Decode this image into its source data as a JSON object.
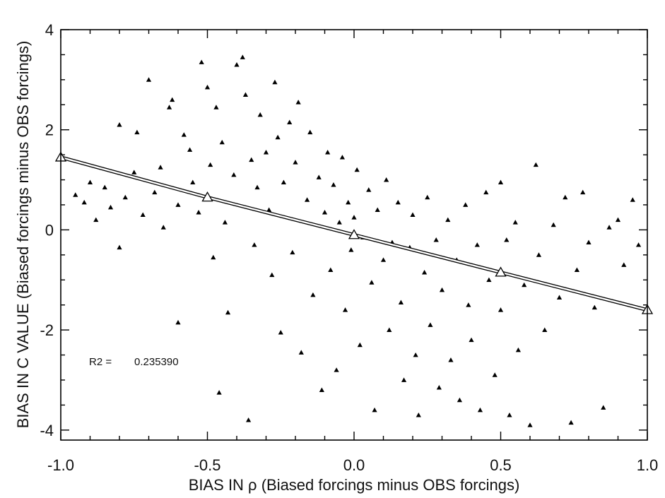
{
  "chart_data": {
    "type": "scatter",
    "title": "",
    "xlabel": "BIAS IN ρ (Biased forcings minus OBS forcings)",
    "ylabel": "BIAS IN C VALUE (Biased forcings minus OBS forcings)",
    "xlim": [
      -1.0,
      1.0
    ],
    "ylim": [
      -4.2,
      4.0
    ],
    "x_ticks": [
      -1.0,
      -0.5,
      0.0,
      0.5,
      1.0
    ],
    "x_tick_labels": [
      "-1.0",
      "-0.5",
      "0.0",
      "0.5",
      "1.0"
    ],
    "y_ticks": [
      -4,
      -2,
      0,
      2,
      4
    ],
    "y_tick_labels": [
      "-4",
      "-2",
      "0",
      "2",
      "4"
    ],
    "grid": false,
    "marker": "filled-triangle",
    "point_color": "#000000",
    "series": [
      {
        "points": [
          [
            -0.95,
            0.7
          ],
          [
            -0.92,
            0.55
          ],
          [
            -0.9,
            0.95
          ],
          [
            -0.88,
            0.2
          ],
          [
            -0.85,
            0.85
          ],
          [
            -0.83,
            0.45
          ],
          [
            -0.8,
            2.1
          ],
          [
            -0.8,
            -0.35
          ],
          [
            -0.78,
            0.65
          ],
          [
            -0.75,
            1.15
          ],
          [
            -0.74,
            1.95
          ],
          [
            -0.72,
            0.3
          ],
          [
            -0.7,
            3.0
          ],
          [
            -0.68,
            0.75
          ],
          [
            -0.66,
            1.25
          ],
          [
            -0.65,
            0.05
          ],
          [
            -0.63,
            2.45
          ],
          [
            -0.62,
            2.6
          ],
          [
            -0.6,
            0.5
          ],
          [
            -0.6,
            -1.85
          ],
          [
            -0.58,
            1.9
          ],
          [
            -0.56,
            1.6
          ],
          [
            -0.55,
            0.95
          ],
          [
            -0.53,
            0.35
          ],
          [
            -0.52,
            3.35
          ],
          [
            -0.5,
            2.85
          ],
          [
            -0.49,
            1.3
          ],
          [
            -0.48,
            -0.55
          ],
          [
            -0.47,
            2.45
          ],
          [
            -0.46,
            -3.25
          ],
          [
            -0.45,
            1.75
          ],
          [
            -0.44,
            0.15
          ],
          [
            -0.43,
            -1.65
          ],
          [
            -0.41,
            1.1
          ],
          [
            -0.4,
            3.3
          ],
          [
            -0.38,
            3.45
          ],
          [
            -0.37,
            2.7
          ],
          [
            -0.36,
            -3.8
          ],
          [
            -0.35,
            1.4
          ],
          [
            -0.34,
            -0.3
          ],
          [
            -0.33,
            0.85
          ],
          [
            -0.32,
            2.3
          ],
          [
            -0.3,
            1.55
          ],
          [
            -0.29,
            0.4
          ],
          [
            -0.28,
            -0.9
          ],
          [
            -0.27,
            2.95
          ],
          [
            -0.26,
            1.85
          ],
          [
            -0.25,
            -2.05
          ],
          [
            -0.24,
            0.95
          ],
          [
            -0.22,
            2.15
          ],
          [
            -0.21,
            -0.45
          ],
          [
            -0.2,
            1.35
          ],
          [
            -0.19,
            2.55
          ],
          [
            -0.18,
            -2.45
          ],
          [
            -0.16,
            0.6
          ],
          [
            -0.15,
            1.95
          ],
          [
            -0.14,
            -1.3
          ],
          [
            -0.12,
            1.05
          ],
          [
            -0.11,
            -3.2
          ],
          [
            -0.1,
            0.35
          ],
          [
            -0.09,
            1.55
          ],
          [
            -0.08,
            -0.8
          ],
          [
            -0.07,
            0.9
          ],
          [
            -0.06,
            -2.8
          ],
          [
            -0.05,
            0.15
          ],
          [
            -0.04,
            1.45
          ],
          [
            -0.03,
            -1.6
          ],
          [
            -0.02,
            0.55
          ],
          [
            -0.01,
            -0.4
          ],
          [
            0.0,
            0.25
          ],
          [
            0.01,
            1.2
          ],
          [
            0.02,
            -2.3
          ],
          [
            0.03,
            -0.15
          ],
          [
            0.05,
            0.8
          ],
          [
            0.06,
            -1.05
          ],
          [
            0.07,
            -3.6
          ],
          [
            0.08,
            0.4
          ],
          [
            0.1,
            -0.6
          ],
          [
            0.11,
            1.0
          ],
          [
            0.12,
            -2.0
          ],
          [
            0.13,
            -0.25
          ],
          [
            0.15,
            0.55
          ],
          [
            0.16,
            -1.45
          ],
          [
            0.17,
            -3.0
          ],
          [
            0.19,
            -0.35
          ],
          [
            0.2,
            0.3
          ],
          [
            0.21,
            -2.5
          ],
          [
            0.22,
            -3.7
          ],
          [
            0.24,
            -0.85
          ],
          [
            0.25,
            0.65
          ],
          [
            0.26,
            -1.9
          ],
          [
            0.28,
            -0.2
          ],
          [
            0.29,
            -3.15
          ],
          [
            0.3,
            -1.2
          ],
          [
            0.32,
            0.2
          ],
          [
            0.33,
            -2.6
          ],
          [
            0.35,
            -0.6
          ],
          [
            0.36,
            -3.4
          ],
          [
            0.38,
            0.5
          ],
          [
            0.39,
            -1.5
          ],
          [
            0.4,
            -2.2
          ],
          [
            0.42,
            -0.3
          ],
          [
            0.43,
            -3.6
          ],
          [
            0.45,
            0.75
          ],
          [
            0.46,
            -1.0
          ],
          [
            0.48,
            -2.9
          ],
          [
            0.5,
            0.95
          ],
          [
            0.5,
            -1.6
          ],
          [
            0.52,
            -0.2
          ],
          [
            0.53,
            -3.7
          ],
          [
            0.55,
            0.15
          ],
          [
            0.56,
            -2.4
          ],
          [
            0.58,
            -1.1
          ],
          [
            0.6,
            -3.9
          ],
          [
            0.62,
            1.3
          ],
          [
            0.63,
            -0.5
          ],
          [
            0.65,
            -2.0
          ],
          [
            0.68,
            0.1
          ],
          [
            0.7,
            -1.35
          ],
          [
            0.72,
            0.65
          ],
          [
            0.74,
            -3.85
          ],
          [
            0.76,
            -0.8
          ],
          [
            0.78,
            0.75
          ],
          [
            0.8,
            -0.25
          ],
          [
            0.82,
            -1.55
          ],
          [
            0.85,
            -3.55
          ],
          [
            0.87,
            0.05
          ],
          [
            0.9,
            0.2
          ],
          [
            0.92,
            -0.7
          ],
          [
            0.95,
            0.6
          ],
          [
            0.97,
            -0.3
          ]
        ]
      }
    ],
    "regression_line": {
      "x": [
        -1.0,
        -0.5,
        0.0,
        0.5,
        1.0
      ],
      "y": [
        1.45,
        0.65,
        -0.1,
        -0.85,
        -1.6
      ],
      "style": "double-line",
      "marker": "open-triangle"
    },
    "annotations": [
      {
        "label": "R2 =",
        "value": "0.235390"
      }
    ]
  }
}
